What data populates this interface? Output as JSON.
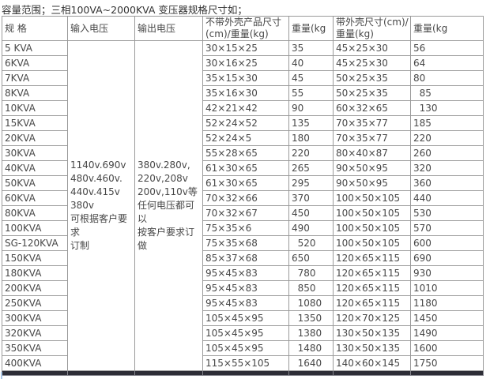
{
  "title": "容量范围；三相100VA~2000KVA 变压器规格尺寸如；",
  "colors": {
    "border": "#9a9a9a",
    "text": "#474747",
    "dark_divider_bar": "#2d2d36"
  },
  "table": {
    "headers": [
      "规 格",
      "输入电压",
      "输出电压",
      "不带外壳产品尺寸\n(cm)/重量(kg)",
      "重量(kg",
      "带外壳尺寸(cm)/\n重量(kg)",
      "重量(kg"
    ],
    "input_voltage": "1140v.690v\n480v.460v.\n440v.415v\n380v\n可根据客户要求\n订制",
    "output_voltage": "380v.280v,\n220v,208v\n200v,110v等\n任何电压都可以\n按客户要求订做",
    "rows": [
      {
        "spec": "5 KVA",
        "size_no_shell": "30×15×25",
        "weight_no_shell": "35",
        "size_shell": "45×25×30",
        "weight_shell": "56"
      },
      {
        "spec": "6KVA",
        "size_no_shell": "30×16×25",
        "weight_no_shell": "40",
        "size_shell": "45×25×30",
        "weight_shell": "64"
      },
      {
        "spec": "7KVA",
        "size_no_shell": "35×15×30",
        "weight_no_shell": "45",
        "size_shell": "50×25×35",
        "weight_shell": "80"
      },
      {
        "spec": "8KVA",
        "size_no_shell": "35×16×30",
        "weight_no_shell": "55",
        "size_shell": "50×25×35",
        "weight_shell": "  85"
      },
      {
        "spec": "10KVA",
        "size_no_shell": "42×21×42",
        "weight_no_shell": "90",
        "size_shell": "60×32×65",
        "weight_shell": "  130"
      },
      {
        "spec": "15KVA",
        "size_no_shell": "52×24×52",
        "weight_no_shell": "135",
        "size_shell": "70×35×77",
        "weight_shell": "185"
      },
      {
        "spec": "20KVA",
        "size_no_shell": "52×24×5",
        "weight_no_shell": "180",
        "size_shell": "70×35×77",
        "weight_shell": "220"
      },
      {
        "spec": "30KVA",
        "size_no_shell": "55×28×65",
        "weight_no_shell": "220",
        "size_shell": "80×40×87",
        "weight_shell": "260"
      },
      {
        "spec": "40KVA",
        "size_no_shell": "61×30×65",
        "weight_no_shell": "265",
        "size_shell": "90×50×95",
        "weight_shell": "320"
      },
      {
        "spec": "50KVA",
        "size_no_shell": "61×30×65",
        "weight_no_shell": "295",
        "size_shell": "90×50×95",
        "weight_shell": "360"
      },
      {
        "spec": "60KVA",
        "size_no_shell": "70×32×66",
        "weight_no_shell": "370",
        "size_shell": "100×50×105",
        "weight_shell": "440"
      },
      {
        "spec": "80KVA",
        "size_no_shell": "70×32×67",
        "weight_no_shell": "450",
        "size_shell": "100×50×105",
        "weight_shell": "530"
      },
      {
        "spec": "100KVA",
        "size_no_shell": "75×35×6",
        "weight_no_shell": "490",
        "size_shell": "100×50×105",
        "weight_shell": "570"
      },
      {
        "spec": "SG-120KVA",
        "size_no_shell": "75×35×68",
        "weight_no_shell": "  520",
        "size_shell": "100×50×105",
        "weight_shell": "600"
      },
      {
        "spec": "150KVA",
        "size_no_shell": "85×37×68",
        "weight_no_shell": "650",
        "size_shell": "120×65×115",
        "weight_shell": "690"
      },
      {
        "spec": "180KVA",
        "size_no_shell": "95×45×83",
        "weight_no_shell": "  780",
        "size_shell": "120×65×115",
        "weight_shell": "930"
      },
      {
        "spec": "200KVA",
        "size_no_shell": "95×45×83",
        "weight_no_shell": "  850",
        "size_shell": "120×65×115",
        "weight_shell": "1010"
      },
      {
        "spec": "250KVA",
        "size_no_shell": "95×45×83",
        "weight_no_shell": "  1080",
        "size_shell": "120×65×115",
        "weight_shell": "1180"
      },
      {
        "spec": "300KVA",
        "size_no_shell": "105×45×95",
        "weight_no_shell": "  1350",
        "size_shell": "120×70×125",
        "weight_shell": "1450"
      },
      {
        "spec": "320KVA",
        "size_no_shell": "105×45×95",
        "weight_no_shell": "  1380",
        "size_shell": "130×50×135",
        "weight_shell": "1490"
      },
      {
        "spec": "350KVA",
        "size_no_shell": "105×45×95",
        "weight_no_shell": "  1480",
        "size_shell": "130×50×135",
        "weight_shell": "1600"
      },
      {
        "spec": "400KVA",
        "size_no_shell": "115×55×105",
        "weight_no_shell": "  1640",
        "size_shell": "140×60×145",
        "weight_shell": "1750"
      }
    ]
  }
}
